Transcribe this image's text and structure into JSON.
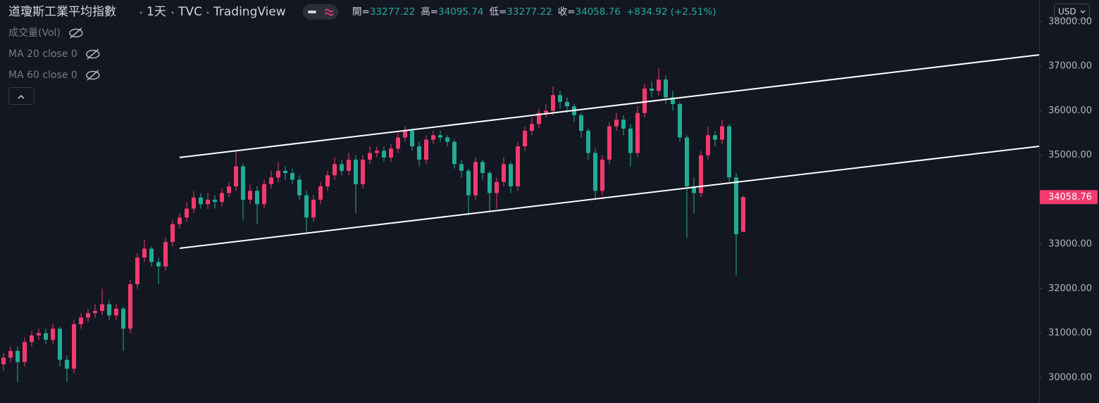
{
  "chart_data": {
    "type": "candlestick",
    "title": "道瓊斯工業平均指數",
    "interval": "1天",
    "exchange": "TVC",
    "source": "TradingView",
    "ohlc_labels": [
      "開=",
      "高=",
      "低=",
      "收="
    ],
    "change": "+834.92 (+2.51%)",
    "indicators": [
      "成交量(Vol)",
      "MA 20 close 0",
      "MA 60 close 0"
    ],
    "currency": "USD",
    "up_color": "#f23a6e",
    "down_color": "#22ab94",
    "line_color": "#ffffff",
    "background": "#131722",
    "ylim": [
      29430,
      38490
    ],
    "yticks": [
      {
        "value": 30000,
        "label": "30000.00"
      },
      {
        "value": 31000,
        "label": "31000.00"
      },
      {
        "value": 32000,
        "label": "32000.00"
      },
      {
        "value": 33000,
        "label": "33000.00"
      },
      {
        "value": 34000,
        "label": "34000.00"
      },
      {
        "value": 35000,
        "label": "35000.00"
      },
      {
        "value": 36000,
        "label": "36000.00"
      },
      {
        "value": 37000,
        "label": "37000.00"
      },
      {
        "value": 38000,
        "label": "38000.00"
      }
    ],
    "open": [
      30300,
      30450,
      30600,
      30350,
      30800,
      30950,
      31000,
      30850,
      31100,
      30400,
      30200,
      31200,
      31350,
      31450,
      31500,
      31650,
      31400,
      31550,
      31100,
      32100,
      32700,
      32900,
      32600,
      32500,
      33050,
      33450,
      33600,
      33800,
      34050,
      33900,
      34000,
      33950,
      34150,
      34300,
      34750,
      34000,
      34200,
      33900,
      34350,
      34500,
      34650,
      34600,
      34450,
      34100,
      33600,
      34000,
      34300,
      34550,
      34800,
      34650,
      34900,
      34350,
      34900,
      35050,
      35100,
      34950,
      35150,
      35400,
      35550,
      35200,
      34900,
      35350,
      35450,
      35400,
      35300,
      34800,
      34650,
      34100,
      34850,
      34600,
      34150,
      34400,
      34800,
      34300,
      35200,
      35550,
      35700,
      35950,
      36000,
      36350,
      36200,
      36100,
      35900,
      35550,
      35050,
      34200,
      34900,
      35650,
      35800,
      35600,
      35050,
      35950,
      36500,
      36450,
      36700,
      36300,
      36150,
      35400,
      34300,
      34150,
      35000,
      35450,
      35350,
      35650,
      34500,
      33277.22
    ],
    "high": [
      30550,
      30700,
      30700,
      30900,
      31050,
      31100,
      31100,
      31200,
      31150,
      30500,
      31300,
      31450,
      31550,
      31650,
      32000,
      31750,
      31650,
      31600,
      32200,
      32800,
      33100,
      32950,
      32700,
      33150,
      33550,
      33700,
      33950,
      34200,
      34150,
      34150,
      34100,
      34250,
      34400,
      35100,
      34800,
      34350,
      34300,
      34450,
      34650,
      34850,
      34750,
      34700,
      34550,
      34200,
      34100,
      34400,
      34650,
      34950,
      34900,
      35050,
      35000,
      35000,
      35200,
      35200,
      35200,
      35250,
      35500,
      35650,
      35600,
      35300,
      35450,
      35550,
      35550,
      35450,
      35350,
      34900,
      34700,
      34950,
      34900,
      34650,
      34500,
      34950,
      34850,
      35300,
      35650,
      35850,
      36050,
      36150,
      36550,
      36450,
      36300,
      36150,
      35950,
      35600,
      35150,
      35000,
      35750,
      35950,
      35900,
      35700,
      36100,
      36600,
      36650,
      36950,
      36800,
      36450,
      36200,
      35450,
      34500,
      35100,
      35650,
      35550,
      35800,
      35700,
      34600,
      34095.74
    ],
    "low": [
      30150,
      30350,
      29900,
      30250,
      30700,
      30850,
      30750,
      30750,
      30250,
      29900,
      30100,
      31100,
      31250,
      31350,
      31400,
      31300,
      31300,
      30600,
      31000,
      32000,
      32600,
      32500,
      32100,
      32400,
      32950,
      33350,
      33500,
      33700,
      33800,
      33800,
      33800,
      33850,
      34050,
      34200,
      33550,
      33900,
      33450,
      33800,
      34250,
      34400,
      34450,
      34350,
      34000,
      33250,
      33500,
      33900,
      34200,
      34450,
      34550,
      34550,
      33700,
      34250,
      34800,
      34950,
      34850,
      34850,
      35050,
      35300,
      35100,
      34750,
      34800,
      35250,
      35300,
      35200,
      34700,
      34500,
      33650,
      34000,
      34450,
      33750,
      33800,
      34300,
      34150,
      34200,
      35100,
      35450,
      35600,
      35850,
      35900,
      36050,
      35950,
      35750,
      35400,
      34900,
      34000,
      34100,
      34800,
      35550,
      35450,
      34750,
      34950,
      35850,
      36300,
      36350,
      36150,
      36000,
      35300,
      33150,
      33700,
      34050,
      34900,
      35200,
      35250,
      34400,
      32300,
      33277.22
    ],
    "close": [
      30450,
      30600,
      30350,
      30800,
      30950,
      31000,
      30850,
      31100,
      30400,
      30200,
      31200,
      31350,
      31450,
      31500,
      31650,
      31400,
      31550,
      31100,
      32100,
      32700,
      32900,
      32600,
      32500,
      33050,
      33450,
      33600,
      33800,
      34050,
      33900,
      34000,
      33950,
      34150,
      34300,
      34750,
      34000,
      34200,
      33900,
      34350,
      34500,
      34650,
      34600,
      34450,
      34100,
      33600,
      34000,
      34300,
      34550,
      34800,
      34650,
      34900,
      34350,
      34900,
      35050,
      35100,
      34950,
      35150,
      35400,
      35550,
      35200,
      34900,
      35350,
      35450,
      35400,
      35300,
      34800,
      34650,
      34100,
      34850,
      34600,
      34150,
      34400,
      34800,
      34300,
      35200,
      35550,
      35700,
      35950,
      36000,
      36350,
      36200,
      36100,
      35900,
      35550,
      35050,
      34200,
      34900,
      35650,
      35800,
      35600,
      35050,
      35950,
      36500,
      36450,
      36700,
      36300,
      36150,
      35400,
      34300,
      34150,
      35000,
      35450,
      35350,
      35650,
      34500,
      33223.84,
      34058.76
    ],
    "trendlines": [
      {
        "x": [
          25,
          147
        ],
        "y": [
          34950,
          37257
        ]
      },
      {
        "x": [
          25,
          147
        ],
        "y": [
          32909,
          35202
        ]
      }
    ]
  }
}
